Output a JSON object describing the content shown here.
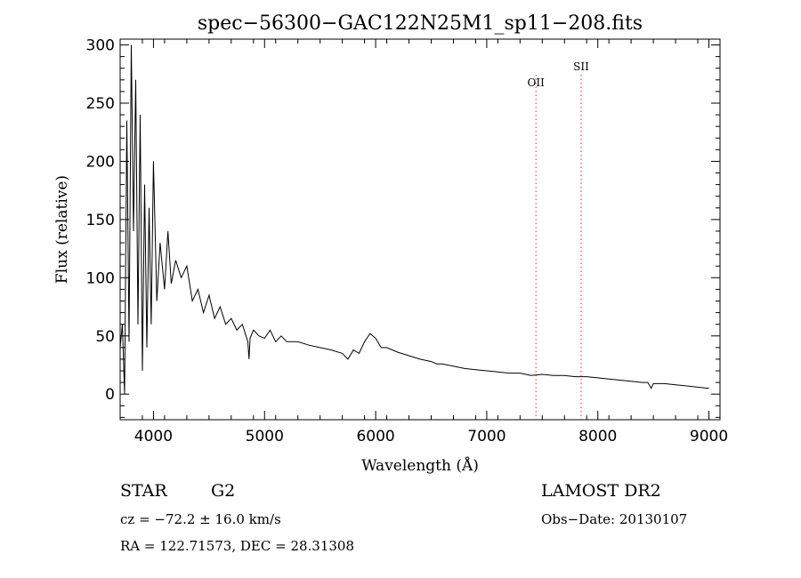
{
  "chart_data": {
    "type": "line",
    "title": "spec−56300−GAC122N25M1_sp11−208.fits",
    "xlabel": "Wavelength (Å)",
    "ylabel": "Flux (relative)",
    "xlim": [
      3700,
      9100
    ],
    "ylim": [
      -22,
      305
    ],
    "xticks": [
      4000,
      5000,
      6000,
      7000,
      8000,
      9000
    ],
    "yticks": [
      0,
      50,
      100,
      150,
      200,
      250,
      300
    ],
    "grid": false,
    "legend": "none",
    "line_color": "#000000",
    "marker_color": "#cc3333",
    "series": [
      {
        "x": [
          3700,
          3720,
          3740,
          3760,
          3780,
          3800,
          3820,
          3840,
          3860,
          3880,
          3900,
          3920,
          3940,
          3960,
          3980,
          4000,
          4030,
          4060,
          4100,
          4130,
          4160,
          4200,
          4250,
          4300,
          4350,
          4400,
          4450,
          4500,
          4550,
          4600,
          4650,
          4700,
          4750,
          4800,
          4850,
          4860,
          4870,
          4900,
          4950,
          5000,
          5050,
          5100,
          5150,
          5200,
          5300,
          5400,
          5500,
          5600,
          5700,
          5750,
          5800,
          5850,
          5900,
          5950,
          6000,
          6050,
          6100,
          6200,
          6300,
          6400,
          6500,
          6550,
          6600,
          6700,
          6800,
          6900,
          7000,
          7100,
          7200,
          7300,
          7400,
          7500,
          7600,
          7700,
          7800,
          7900,
          8000,
          8100,
          8200,
          8300,
          8400,
          8450,
          8480,
          8500,
          8550,
          8600,
          8700,
          8800,
          8900,
          9000
        ],
        "y": [
          40,
          60,
          0,
          235,
          45,
          300,
          140,
          270,
          60,
          240,
          20,
          180,
          40,
          160,
          60,
          200,
          80,
          130,
          90,
          140,
          95,
          115,
          100,
          110,
          80,
          90,
          70,
          85,
          65,
          75,
          60,
          65,
          55,
          60,
          45,
          30,
          48,
          55,
          50,
          48,
          55,
          45,
          50,
          45,
          45,
          42,
          40,
          38,
          35,
          30,
          38,
          35,
          45,
          52,
          48,
          40,
          40,
          36,
          33,
          30,
          28,
          26,
          26,
          24,
          22,
          21,
          20,
          19,
          18,
          18,
          16,
          17,
          16,
          16,
          15,
          15,
          14,
          13,
          12,
          11,
          10,
          10,
          5,
          9,
          9,
          9,
          8,
          7,
          6,
          5
        ]
      }
    ],
    "lines": [
      {
        "label": "OII",
        "x": 7443
      },
      {
        "label": "SII",
        "x": 7850
      }
    ]
  },
  "info": {
    "object_type": "STAR",
    "subclass": "G2",
    "survey": "LAMOST DR2",
    "redshift": "cz = −72.2 ± 16.0 km/s",
    "obs_date": "Obs−Date: 20130107",
    "coords": "RA = 122.71573, DEC =  28.31308"
  }
}
